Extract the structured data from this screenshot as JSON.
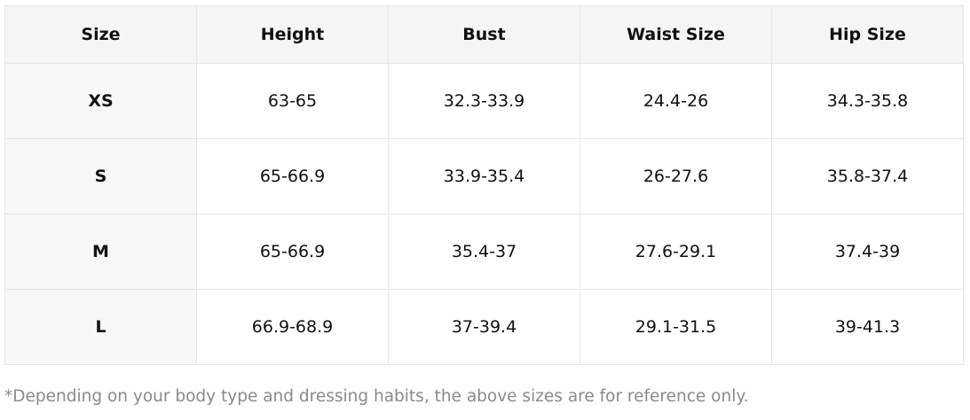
{
  "table": {
    "header": [
      "Size",
      "Height",
      "Bust",
      "Waist Size",
      "Hip Size"
    ],
    "rows": [
      [
        "XS",
        "63-65",
        "32.3-33.9",
        "24.4-26",
        "34.3-35.8"
      ],
      [
        "S",
        "65-66.9",
        "33.9-35.4",
        "26-27.6",
        "35.8-37.4"
      ],
      [
        "M",
        "65-66.9",
        "35.4-37",
        "27.6-29.1",
        "37.4-39"
      ],
      [
        "L",
        "66.9-68.9",
        "37-39.4",
        "29.1-31.5",
        "39-41.3"
      ]
    ]
  },
  "footnote": "*Depending on your body type and dressing habits, the above sizes are for reference only."
}
